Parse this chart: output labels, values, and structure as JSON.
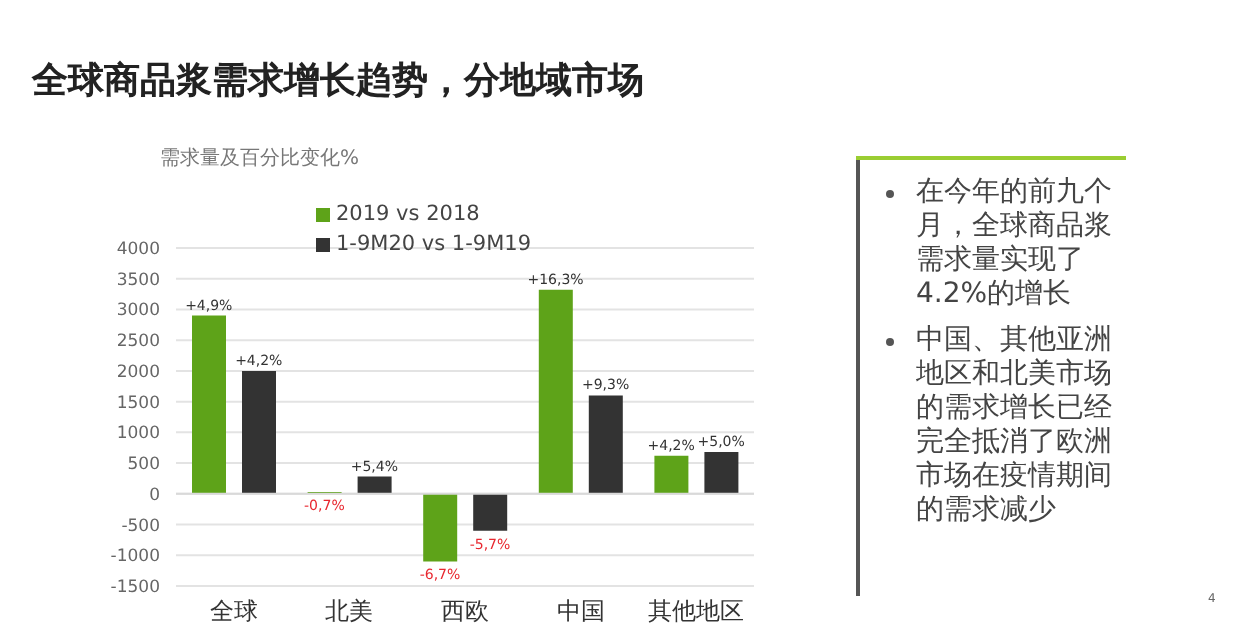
{
  "chart_data": {
    "type": "bar",
    "title": "全球商品浆需求增长趋势，分地域市场",
    "ylabel": "需求量及百分比变化%",
    "categories": [
      "全球",
      "北美",
      "西欧",
      "中国",
      "其他地区"
    ],
    "series": [
      {
        "name": "2019 vs 2018",
        "color": "#5ea319",
        "values": [
          2900,
          30,
          -1100,
          3320,
          620
        ]
      },
      {
        "name": "1-9M20 vs 1-9M19",
        "color": "#333333",
        "values": [
          2000,
          280,
          -600,
          1600,
          680
        ]
      }
    ],
    "ylim": [
      -1500,
      4000
    ],
    "yticks": [
      -1500,
      -1000,
      -500,
      0,
      500,
      1000,
      1500,
      2000,
      2500,
      3000,
      3500,
      4000
    ],
    "grid": "y",
    "legend": "top",
    "annotations": [
      {
        "text": "+4,9%",
        "x": "全球",
        "y": 2900
      },
      {
        "text": "+4,2%",
        "x": "全球",
        "y": 2000
      },
      {
        "text": "-0,7%",
        "x": "北美",
        "y": 30
      },
      {
        "text": "+5,4%",
        "x": "北美",
        "y": 280
      },
      {
        "text": "-6,7%",
        "x": "西欧",
        "y": -1100
      },
      {
        "text": "-5,7%",
        "x": "西欧",
        "y": -600
      },
      {
        "text": "+16,3%",
        "x": "中国",
        "y": 3320
      },
      {
        "text": "+9,3%",
        "x": "中国",
        "y": 1600
      },
      {
        "text": "+4,2%",
        "x": "其他地区",
        "y": 620
      },
      {
        "text": "+5,0%",
        "x": "其他地区",
        "y": 680
      },
      "在今年的前九个月，全球商品浆需求量实现了4.2%的增长",
      "中国、其他亚洲地区和北美市场的需求增长已经完全抵消了欧洲市场在疫情期间的需求减少",
      "4"
    ]
  }
}
